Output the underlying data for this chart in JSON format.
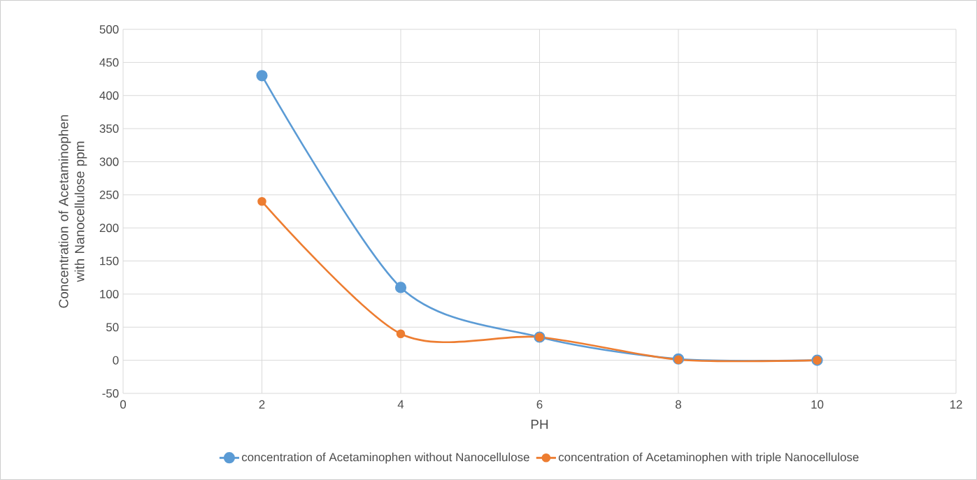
{
  "chart_data": {
    "type": "line",
    "xlabel": "PH",
    "ylabel": "Concentration of Acetaminophen with Nanocellulose ppm",
    "xlim": [
      0,
      12
    ],
    "xticks": [
      0,
      2,
      4,
      6,
      8,
      10,
      12
    ],
    "ylim": [
      -50,
      500
    ],
    "yticks": [
      -50,
      0,
      50,
      100,
      150,
      200,
      250,
      300,
      350,
      400,
      450,
      500
    ],
    "grid": true,
    "legend": "bottom",
    "marker": "circle",
    "line_style": "solid",
    "series": [
      {
        "name": "concentration of Acetaminophen without Nanocellulose",
        "color": "#5b9bd5",
        "x": [
          2,
          4,
          6,
          8,
          10
        ],
        "values": [
          430,
          110,
          35,
          2,
          0
        ]
      },
      {
        "name": "concentration of Acetaminophen with triple  Nanocellulose",
        "color": "#ed7d31",
        "x": [
          2,
          4,
          6,
          8,
          10
        ],
        "values": [
          240,
          40,
          35,
          1,
          0
        ]
      }
    ]
  }
}
